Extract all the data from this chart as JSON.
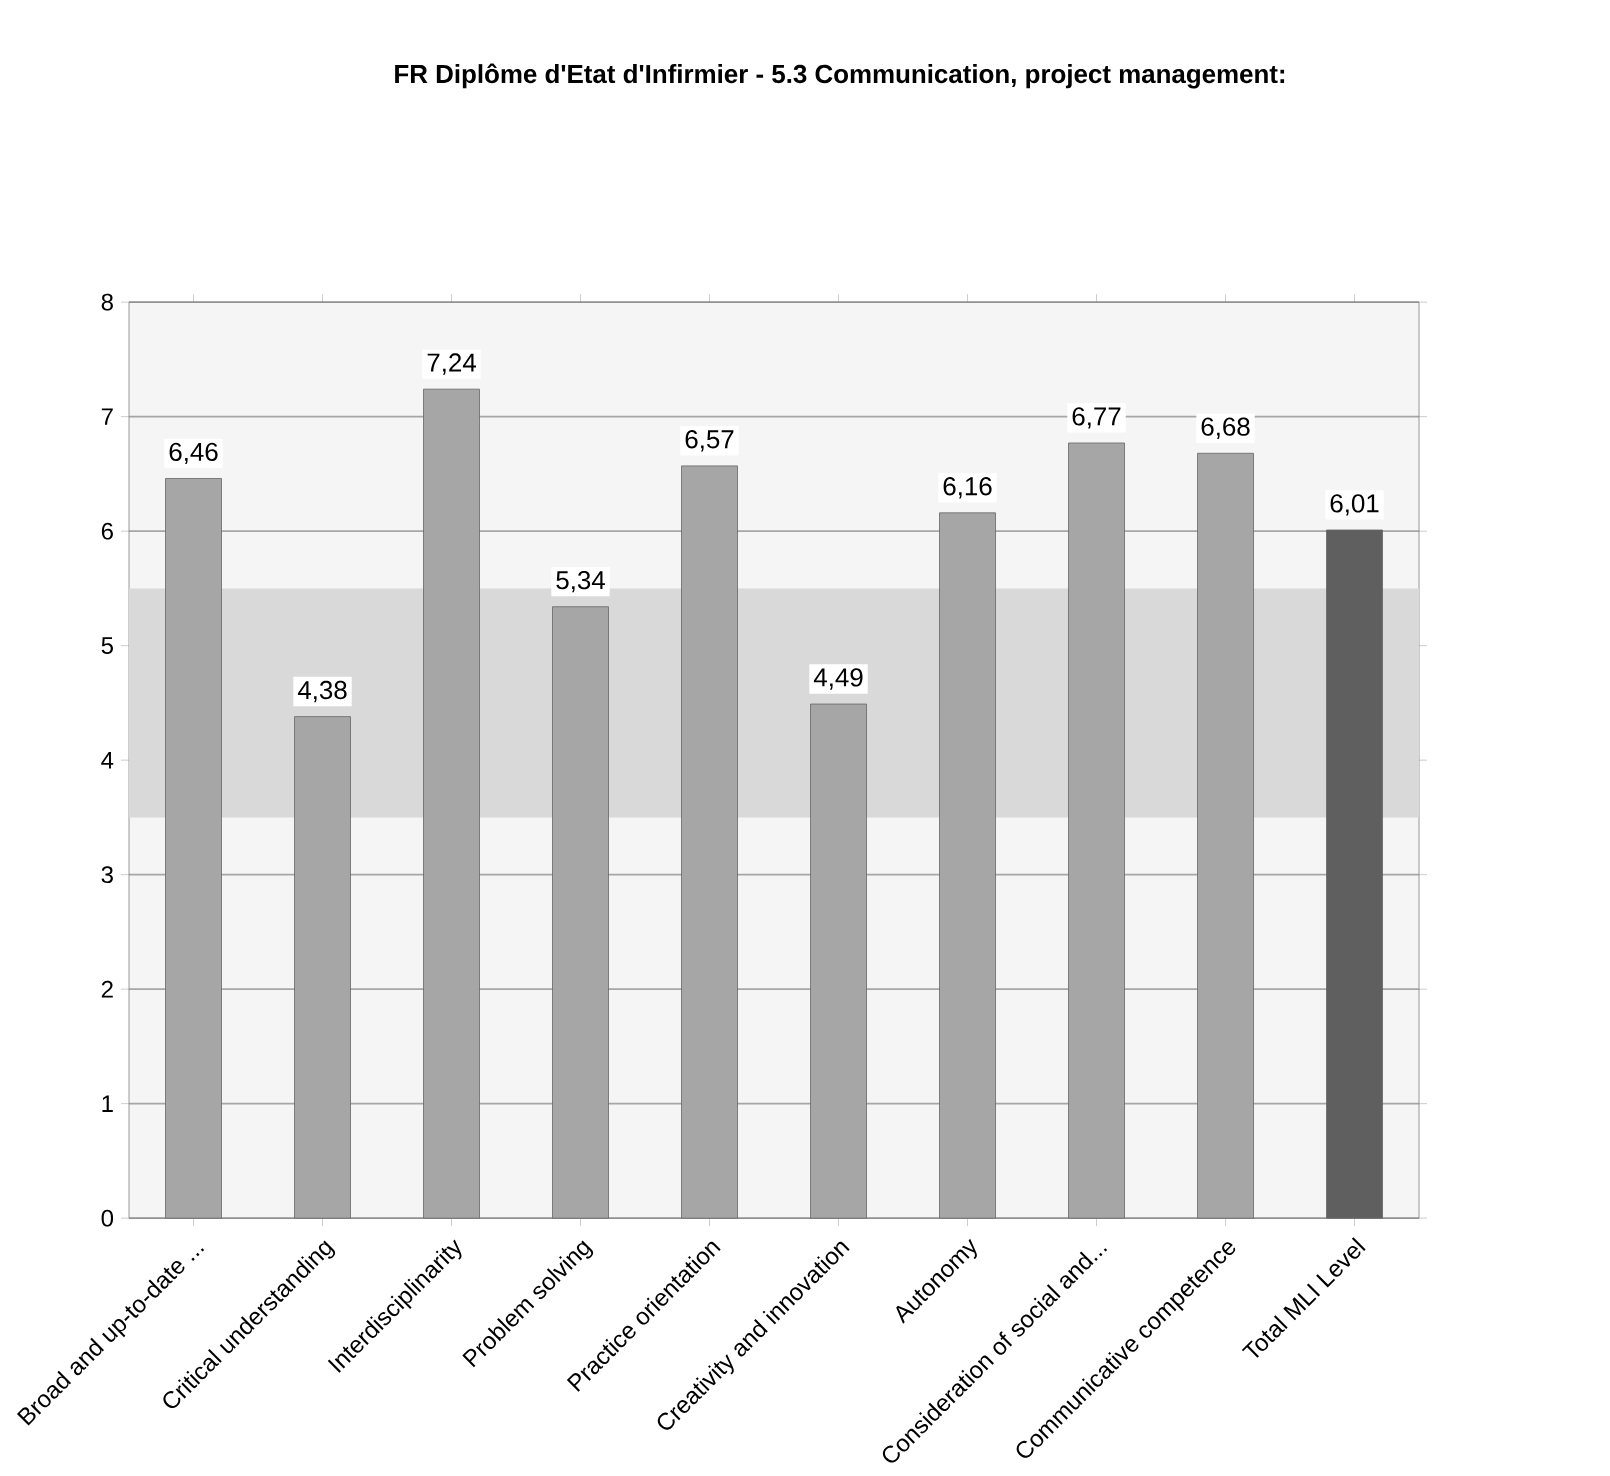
{
  "chart_data": {
    "type": "bar",
    "title": "FR Diplôme d'Etat d'Infirmier - 5.3 Communication, project management:",
    "categories": [
      "Broad and up-to-date ...",
      "Critical understanding",
      "Interdisciplinarity",
      "Problem solving",
      "Practice orientation",
      "Creativity and innovation",
      "Autonomy",
      "Consideration of social and...",
      "Communicative competence",
      "Total MLI Level"
    ],
    "values": [
      6.46,
      4.38,
      7.24,
      5.34,
      6.57,
      4.49,
      6.16,
      6.77,
      6.68,
      6.01
    ],
    "value_labels": [
      "6,46",
      "4,38",
      "7,24",
      "5,34",
      "6,57",
      "4,49",
      "6,16",
      "6,77",
      "6,68",
      "6,01"
    ],
    "colors": [
      "#a6a6a6",
      "#a6a6a6",
      "#a6a6a6",
      "#a6a6a6",
      "#a6a6a6",
      "#a6a6a6",
      "#a6a6a6",
      "#a6a6a6",
      "#a6a6a6",
      "#5f5f5f"
    ],
    "ylim": [
      0,
      8
    ],
    "yticks": [
      0,
      1,
      2,
      3,
      4,
      5,
      6,
      7,
      8
    ],
    "grid": "y",
    "bands": [
      {
        "axis": "y",
        "from": 3.5,
        "to": 5.5,
        "color": "#d9d9d9"
      }
    ]
  }
}
